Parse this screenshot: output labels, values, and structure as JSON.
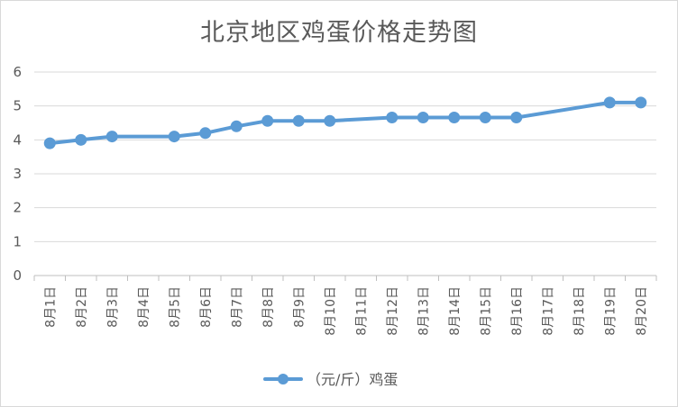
{
  "chart_data": {
    "type": "line",
    "title": "北京地区鸡蛋价格走势图",
    "xlabel": "",
    "ylabel": "",
    "categories": [
      "8月1日",
      "8月2日",
      "8月3日",
      "8月4日",
      "8月5日",
      "8月6日",
      "8月7日",
      "8月8日",
      "8月9日",
      "8月10日",
      "8月11日",
      "8月12日",
      "8月13日",
      "8月14日",
      "8月15日",
      "8月16日",
      "8月17日",
      "8月18日",
      "8月19日",
      "8月20日"
    ],
    "yticks": [
      "0",
      "1",
      "2",
      "3",
      "4",
      "5",
      "6"
    ],
    "ylim": [
      0,
      6
    ],
    "grid": true,
    "legend_position": "bottom",
    "series": [
      {
        "name": "（元/斤）鸡蛋",
        "color": "#5b9bd5",
        "values": [
          3.9,
          4.0,
          4.1,
          null,
          4.1,
          4.2,
          4.4,
          4.56,
          4.56,
          4.56,
          null,
          4.66,
          4.66,
          4.66,
          4.66,
          4.66,
          null,
          null,
          5.1,
          5.1
        ]
      }
    ]
  }
}
